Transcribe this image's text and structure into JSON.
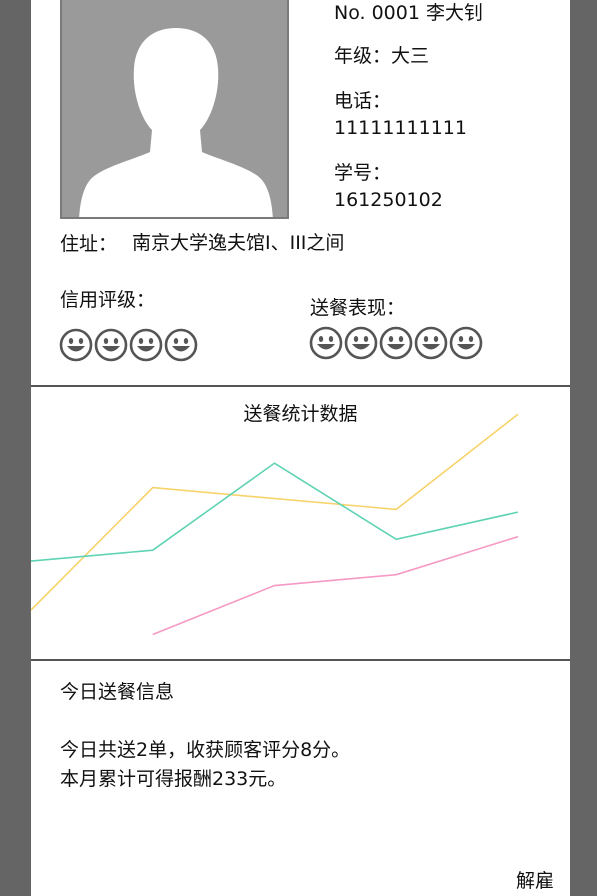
{
  "profile": {
    "id_line": "No. 0001   李大钊",
    "grade": "年级：大三",
    "phone_label": "电话：",
    "phone": "11111111111",
    "student_label": "学号：",
    "student_no": "161250102",
    "address_label": "住址：",
    "address": "南京大学逸夫馆I、III之间",
    "credit_label": "信用评级：",
    "credit_rating": 4,
    "delivery_label": "送餐表现：",
    "delivery_rating": 5,
    "avatar_icon": "person-silhouette-icon"
  },
  "chart_data": {
    "type": "line",
    "title": "送餐统计数据",
    "xlabel": "",
    "ylabel": "",
    "x": [
      0,
      1,
      2,
      3,
      4
    ],
    "ylim": [
      0,
      100
    ],
    "grid": false,
    "series": [
      {
        "color": "#f7d36a",
        "values": [
          18,
          63,
          null,
          55,
          90
        ]
      },
      {
        "color": "#5fd3b3",
        "values": [
          36,
          40,
          72,
          44,
          54
        ]
      },
      {
        "color": "#f49ac5",
        "values": [
          null,
          9,
          27,
          31,
          45
        ]
      }
    ]
  },
  "today": {
    "title": "今日送餐信息",
    "line1": "今日共送2单，收获顾客评分8分。",
    "line2": "本月累计可得报酬233元。",
    "fire_button": "解雇"
  }
}
